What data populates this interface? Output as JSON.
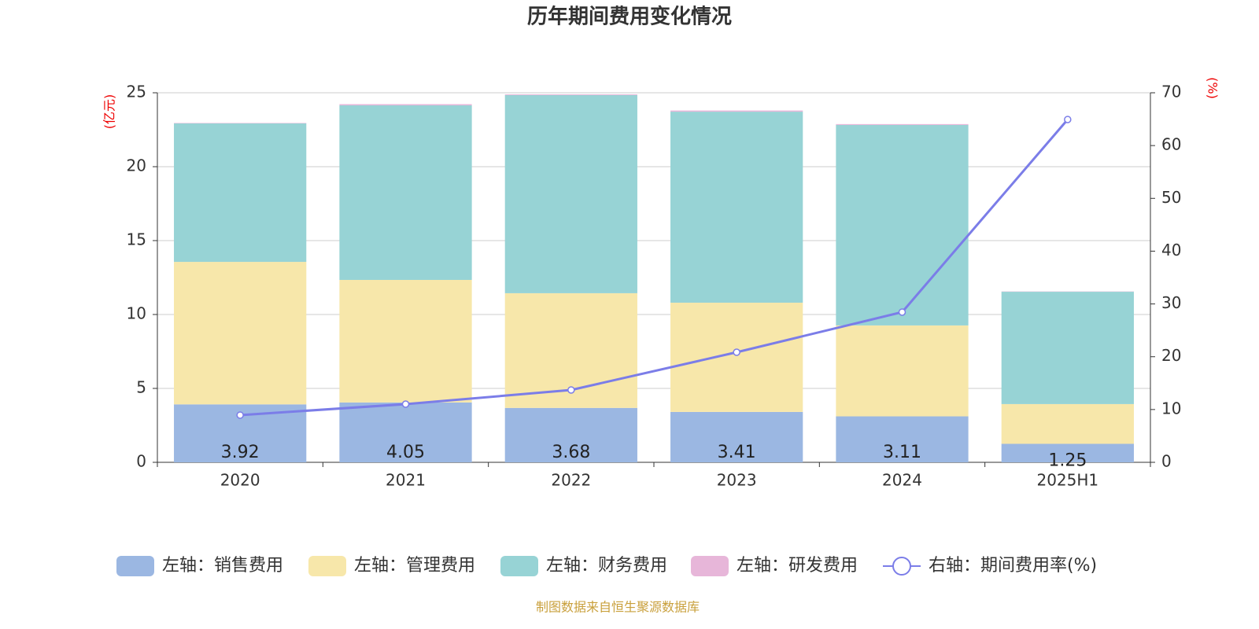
{
  "chart_data": {
    "type": "bar",
    "stacked": true,
    "title": "历年期间费用变化情况",
    "y_label": "(亿元)",
    "y2_label": "(%)",
    "categories": [
      "2020",
      "2021",
      "2022",
      "2023",
      "2024",
      "2025H1"
    ],
    "series": [
      {
        "name": "左轴：销售费用",
        "type": "bar",
        "color": "#9bb7e2",
        "show_labels": true,
        "values": [
          3.92,
          4.05,
          3.68,
          3.41,
          3.11,
          1.25
        ]
      },
      {
        "name": "左轴：管理费用",
        "type": "bar",
        "color": "#f7e7aa",
        "values": [
          9.64,
          8.29,
          7.76,
          7.39,
          6.15,
          2.69
        ]
      },
      {
        "name": "左轴：财务费用",
        "type": "bar",
        "color": "#97d3d5",
        "values": [
          9.37,
          11.81,
          13.4,
          12.92,
          13.56,
          7.6
        ]
      },
      {
        "name": "左轴：研发费用",
        "type": "bar",
        "color": "#e7b6d9",
        "values": [
          0.03,
          0.08,
          0.05,
          0.08,
          0.06,
          0.02
        ]
      },
      {
        "name": "右轴：期间费用率(%)",
        "type": "line",
        "axis": "y2",
        "color": "#7b7de8",
        "values": [
          8.94,
          11.02,
          13.7,
          20.85,
          28.45,
          64.94
        ]
      }
    ],
    "ylim": [
      0,
      25
    ],
    "yticks": [
      0,
      5,
      10,
      15,
      20,
      25
    ],
    "y2lim": [
      0,
      70
    ],
    "y2ticks": [
      0,
      10,
      20,
      30,
      40,
      50,
      60,
      70
    ],
    "grid": true,
    "source": "制图数据来自恒生聚源数据库"
  }
}
